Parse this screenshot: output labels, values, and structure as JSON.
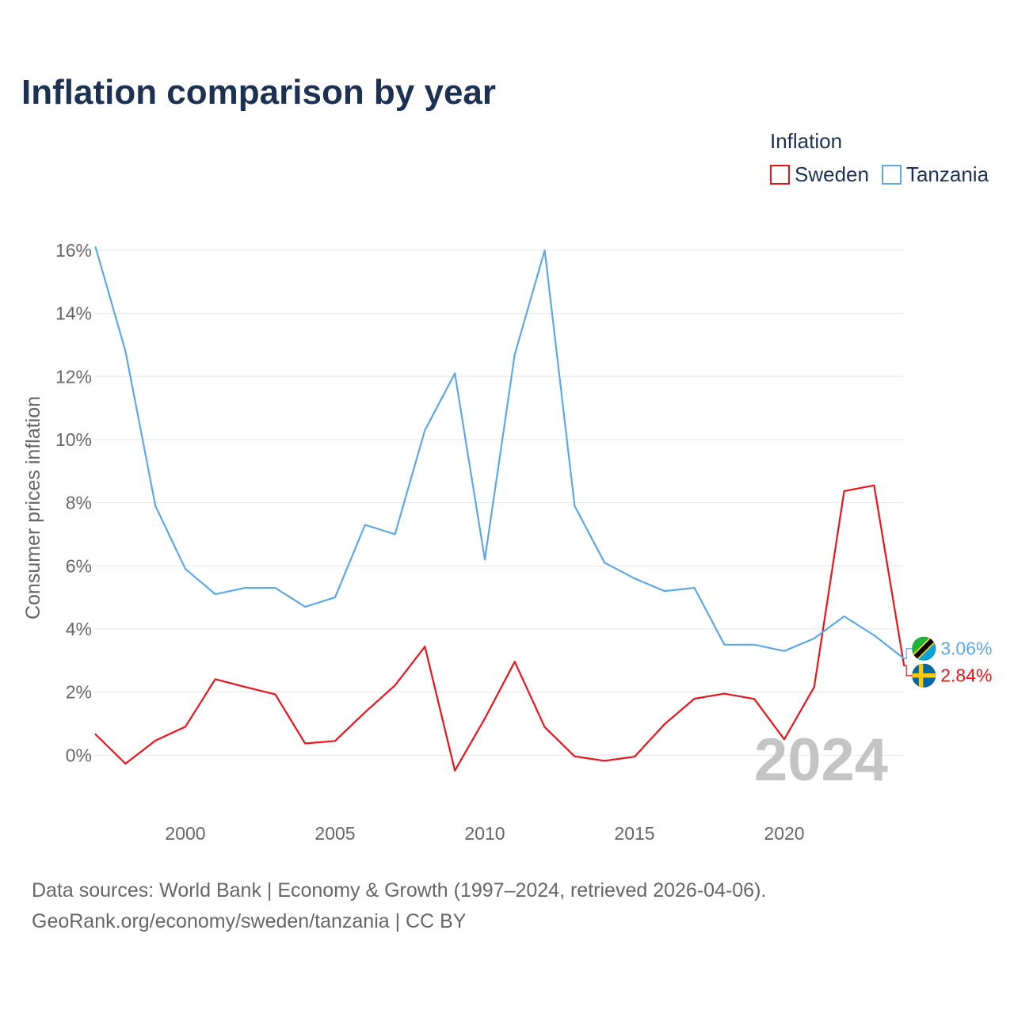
{
  "chart_data": {
    "type": "line",
    "title": "Inflation comparison by year",
    "ylabel": "Consumer prices inflation",
    "x": [
      1997,
      1998,
      1999,
      2000,
      2001,
      2002,
      2003,
      2004,
      2005,
      2006,
      2007,
      2008,
      2009,
      2010,
      2011,
      2012,
      2013,
      2014,
      2015,
      2016,
      2017,
      2018,
      2019,
      2020,
      2021,
      2022,
      2023,
      2024
    ],
    "xlim": [
      1997,
      2024
    ],
    "ylim": [
      -1.5,
      16.4
    ],
    "x_ticks": [
      2000,
      2005,
      2010,
      2015,
      2020
    ],
    "x_tick_labels": [
      "2000",
      "2005",
      "2010",
      "2015",
      "2020"
    ],
    "y_ticks": [
      0,
      2,
      4,
      6,
      8,
      10,
      12,
      14,
      16
    ],
    "y_tick_labels": [
      "0%",
      "2%",
      "4%",
      "6%",
      "8%",
      "10%",
      "12%",
      "14%",
      "16%"
    ],
    "grid": true,
    "legend": {
      "title": "Inflation",
      "placement": "top-right"
    },
    "current_year_label": "2024",
    "series": [
      {
        "name": "Sweden",
        "color": "#e8141c",
        "flag_icon": "sweden-flag-icon",
        "end_label": "2.84%",
        "values": [
          0.66,
          -0.27,
          0.46,
          0.9,
          2.41,
          2.16,
          1.93,
          0.37,
          0.45,
          1.36,
          2.21,
          3.44,
          -0.49,
          1.16,
          2.96,
          0.89,
          -0.04,
          -0.18,
          -0.05,
          0.98,
          1.79,
          1.95,
          1.78,
          0.5,
          2.16,
          8.37,
          8.55,
          2.84
        ]
      },
      {
        "name": "Tanzania",
        "color": "#5fa7e4",
        "flag_icon": "tanzania-flag-icon",
        "end_label": "3.06%",
        "values": [
          16.1,
          12.8,
          7.9,
          5.9,
          5.1,
          5.3,
          5.3,
          4.7,
          5.0,
          7.3,
          7.0,
          10.3,
          12.1,
          6.2,
          12.7,
          16.0,
          7.9,
          6.1,
          5.6,
          5.2,
          5.3,
          3.5,
          3.5,
          3.3,
          3.7,
          4.4,
          3.8,
          3.06
        ]
      }
    ]
  },
  "source": {
    "line1": "Data sources: World Bank | Economy & Growth (1997–2024, retrieved 2026-04-06).",
    "line2": "GeoRank.org/economy/sweden/tanzania | CC BY"
  }
}
